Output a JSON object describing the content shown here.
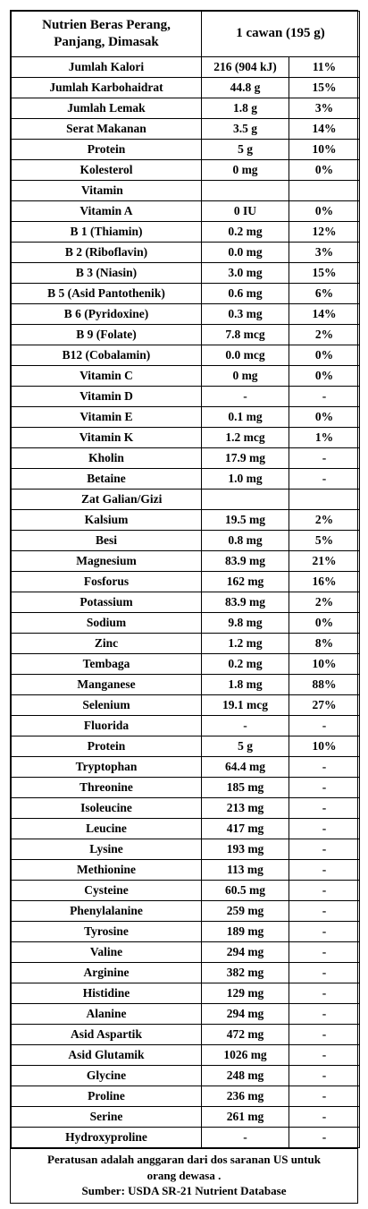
{
  "header": {
    "title_line1": "Nutrien Beras Perang,",
    "title_line2": "Panjang, Dimasak",
    "serving": "1 cawan (195 g)"
  },
  "rows": [
    {
      "kind": "row",
      "name": "Jumlah Kalori",
      "amount": "216 (904 kJ)",
      "dv": "11%"
    },
    {
      "kind": "row",
      "name": "Jumlah Karbohaidrat",
      "amount": "44.8 g",
      "dv": "15%"
    },
    {
      "kind": "row",
      "name": "Jumlah Lemak",
      "amount": "1.8 g",
      "dv": "3%"
    },
    {
      "kind": "row",
      "name": "Serat Makanan",
      "amount": "3.5 g",
      "dv": "14%"
    },
    {
      "kind": "row",
      "name": "Protein",
      "amount": "5 g",
      "dv": "10%"
    },
    {
      "kind": "row",
      "name": "Kolesterol",
      "amount": "0 mg",
      "dv": "0%"
    },
    {
      "kind": "section",
      "name": "Vitamin",
      "amount": "",
      "dv": ""
    },
    {
      "kind": "row",
      "name": "Vitamin  A",
      "amount": "0 IU",
      "dv": "0%"
    },
    {
      "kind": "row",
      "name": "B 1 (Thiamin)",
      "amount": "0.2 mg",
      "dv": "12%"
    },
    {
      "kind": "row",
      "name": "B 2 (Riboflavin)",
      "amount": "0.0 mg",
      "dv": "3%"
    },
    {
      "kind": "row",
      "name": "B 3 (Niasin)",
      "amount": "3.0 mg",
      "dv": "15%"
    },
    {
      "kind": "row",
      "name": "B 5 (Asid Pantothenik)",
      "amount": "0.6 mg",
      "dv": "6%"
    },
    {
      "kind": "row",
      "name": "B 6 (Pyridoxine)",
      "amount": "0.3 mg",
      "dv": "14%"
    },
    {
      "kind": "row",
      "name": "B 9 (Folate)",
      "amount": "7.8 mcg",
      "dv": "2%"
    },
    {
      "kind": "row",
      "name": "B12 (Cobalamin)",
      "amount": "0.0 mcg",
      "dv": "0%"
    },
    {
      "kind": "row",
      "name": "Vitamin C",
      "amount": "0 mg",
      "dv": "0%"
    },
    {
      "kind": "row",
      "name": "Vitamin D",
      "amount": "-",
      "dv": "-"
    },
    {
      "kind": "row",
      "name": "Vitamin E",
      "amount": "0.1 mg",
      "dv": "0%"
    },
    {
      "kind": "row",
      "name": "Vitamin K",
      "amount": "1.2 mcg",
      "dv": "1%"
    },
    {
      "kind": "row",
      "name": "Kholin",
      "amount": "17.9 mg",
      "dv": "-"
    },
    {
      "kind": "row",
      "name": "Betaine",
      "amount": "1.0 mg",
      "dv": "-"
    },
    {
      "kind": "section",
      "name": "Zat Galian/Gizi",
      "amount": "",
      "dv": ""
    },
    {
      "kind": "row",
      "name": "Kalsium",
      "amount": "19.5 mg",
      "dv": "2%"
    },
    {
      "kind": "row",
      "name": "Besi",
      "amount": "0.8 mg",
      "dv": "5%"
    },
    {
      "kind": "row",
      "name": "Magnesium",
      "amount": "83.9 mg",
      "dv": "21%"
    },
    {
      "kind": "row",
      "name": "Fosforus",
      "amount": "162 mg",
      "dv": "16%"
    },
    {
      "kind": "row",
      "name": "Potassium",
      "amount": "83.9 mg",
      "dv": "2%"
    },
    {
      "kind": "row",
      "name": "Sodium",
      "amount": "9.8 mg",
      "dv": "0%"
    },
    {
      "kind": "row",
      "name": "Zinc",
      "amount": "1.2 mg",
      "dv": "8%"
    },
    {
      "kind": "row",
      "name": "Tembaga",
      "amount": "0.2 mg",
      "dv": "10%"
    },
    {
      "kind": "row",
      "name": "Manganese",
      "amount": "1.8 mg",
      "dv": "88%"
    },
    {
      "kind": "row",
      "name": "Selenium",
      "amount": "19.1 mcg",
      "dv": "27%"
    },
    {
      "kind": "row",
      "name": "Fluorida",
      "amount": "-",
      "dv": "-"
    },
    {
      "kind": "row",
      "name": "Protein",
      "amount": "5 g",
      "dv": "10%"
    },
    {
      "kind": "row",
      "name": "Tryptophan",
      "amount": "64.4 mg",
      "dv": "-"
    },
    {
      "kind": "row",
      "name": "Threonine",
      "amount": "185 mg",
      "dv": "-"
    },
    {
      "kind": "row",
      "name": "Isoleucine",
      "amount": "213 mg",
      "dv": "-"
    },
    {
      "kind": "row",
      "name": "Leucine",
      "amount": "417 mg",
      "dv": "-"
    },
    {
      "kind": "row",
      "name": "Lysine",
      "amount": "193 mg",
      "dv": "-"
    },
    {
      "kind": "row",
      "name": "Methionine",
      "amount": "113 mg",
      "dv": "-"
    },
    {
      "kind": "row",
      "name": "Cysteine",
      "amount": "60.5 mg",
      "dv": "-"
    },
    {
      "kind": "row",
      "name": "Phenylalanine",
      "amount": "259 mg",
      "dv": "-"
    },
    {
      "kind": "row",
      "name": "Tyrosine",
      "amount": "189 mg",
      "dv": "-"
    },
    {
      "kind": "row",
      "name": "Valine",
      "amount": "294 mg",
      "dv": "-"
    },
    {
      "kind": "row",
      "name": "Arginine",
      "amount": "382 mg",
      "dv": "-"
    },
    {
      "kind": "row",
      "name": "Histidine",
      "amount": "129 mg",
      "dv": "-"
    },
    {
      "kind": "row",
      "name": "Alanine",
      "amount": "294 mg",
      "dv": "-"
    },
    {
      "kind": "row",
      "name": "Asid Aspartik",
      "amount": "472 mg",
      "dv": "-"
    },
    {
      "kind": "row",
      "name": "Asid Glutamik",
      "amount": "1026 mg",
      "dv": "-"
    },
    {
      "kind": "row",
      "name": "Glycine",
      "amount": "248 mg",
      "dv": "-"
    },
    {
      "kind": "row",
      "name": "Proline",
      "amount": "236 mg",
      "dv": "-"
    },
    {
      "kind": "row",
      "name": "Serine",
      "amount": "261 mg",
      "dv": "-"
    },
    {
      "kind": "row",
      "name": "Hydroxyproline",
      "amount": "-",
      "dv": "-"
    }
  ],
  "footer": {
    "note_line1": "Peratusan adalah anggaran dari dos saranan US untuk",
    "note_line2": "orang dewasa .",
    "source": "Sumber: USDA SR-21 Nutrient Database"
  }
}
